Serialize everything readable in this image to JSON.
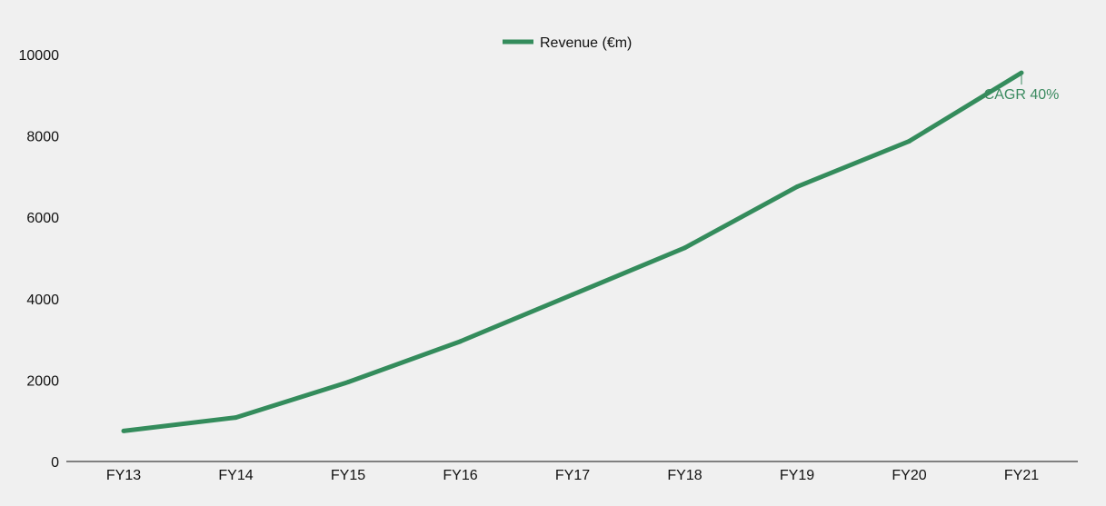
{
  "chart_data": {
    "type": "line",
    "categories": [
      "FY13",
      "FY14",
      "FY15",
      "FY16",
      "FY17",
      "FY18",
      "FY19",
      "FY20",
      "FY21"
    ],
    "series": [
      {
        "name": "Revenue (€m)",
        "values": [
          750,
          1080,
          1950,
          2950,
          4100,
          5250,
          6750,
          7870,
          9550
        ],
        "color": "#348c5c"
      }
    ],
    "ylim": [
      0,
      10000
    ],
    "yticks": [
      0,
      2000,
      4000,
      6000,
      8000,
      10000
    ],
    "grid": false,
    "legend": "top-center",
    "annotation": {
      "text": "CAGR 40%",
      "category": "FY21",
      "value": 9550,
      "color": "#3a8a5f"
    }
  }
}
